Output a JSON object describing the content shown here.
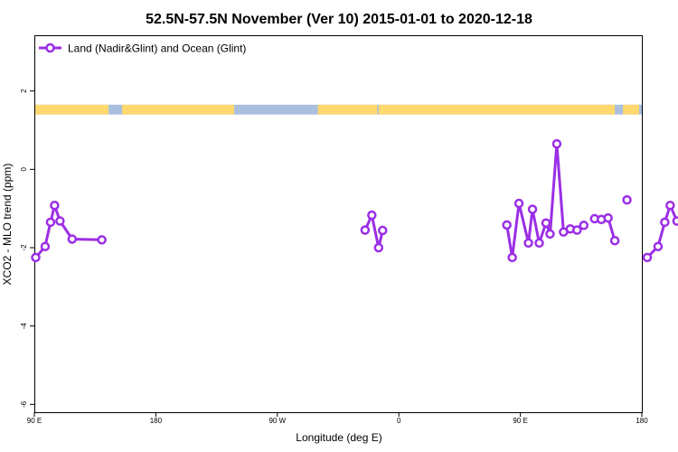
{
  "chart_data": {
    "type": "line",
    "title": "52.5N-57.5N November (Ver 10)   2015-01-01 to 2020-12-18",
    "xlabel": "Longitude (deg E)",
    "ylabel": "XCO2 - MLO trend (ppm)",
    "xlim": [
      90,
      450
    ],
    "ylim": [
      -6.2,
      3.4
    ],
    "x_ticks": [
      90,
      180,
      270,
      360,
      450,
      540
    ],
    "x_tick_labels": [
      "90 E",
      "180",
      "90 W",
      "0",
      "90 E",
      "180"
    ],
    "y_ticks": [
      -6,
      -4,
      -2,
      0,
      2
    ],
    "y_tick_labels": [
      "-6",
      "-4",
      "-2",
      "0",
      "2"
    ],
    "legend_position": "top-left",
    "land_ocean_band": {
      "y_range": [
        1.4,
        1.65
      ],
      "land_color": "#ffd86e",
      "ocean_color": "#a9bfe0",
      "land_segments": [
        [
          90,
          145
        ],
        [
          155,
          238
        ],
        [
          300,
          344
        ],
        [
          345,
          520
        ],
        [
          526,
          538
        ]
      ]
    },
    "series": [
      {
        "name": "Land (Nadir&Glint) and Ocean (Glint)",
        "color": "#9b2ee6",
        "points": [
          [
            1,
            -2.25
          ],
          [
            8,
            -1.97
          ],
          [
            12,
            -1.35
          ],
          [
            15,
            -0.92
          ],
          [
            19,
            -1.32
          ],
          [
            28,
            -1.78
          ],
          [
            50,
            -1.8
          ],
          null,
          [
            245,
            -1.55
          ],
          [
            250,
            -1.17
          ],
          [
            255,
            -2.0
          ],
          [
            258,
            -1.56
          ],
          null,
          [
            350,
            -1.42
          ],
          [
            354,
            -2.25
          ],
          [
            359,
            -0.87
          ],
          [
            366,
            -1.88
          ],
          [
            369,
            -1.02
          ],
          [
            374,
            -1.88
          ],
          [
            379,
            -1.37
          ],
          [
            382,
            -1.65
          ],
          [
            387,
            0.65
          ],
          [
            392,
            -1.6
          ],
          [
            397,
            -1.52
          ],
          [
            402,
            -1.55
          ],
          [
            407,
            -1.43
          ],
          null,
          [
            415,
            -1.26
          ],
          [
            420,
            -1.28
          ],
          [
            425,
            -1.24
          ],
          [
            430,
            -1.82
          ],
          null,
          [
            439,
            -0.78
          ],
          null,
          [
            454,
            -2.25
          ],
          [
            462,
            -1.97
          ],
          [
            467,
            -1.35
          ],
          [
            471,
            -0.92
          ],
          [
            476,
            -1.32
          ],
          null,
          [
            486,
            -1.78
          ],
          null,
          [
            508,
            -1.8
          ]
        ]
      }
    ]
  }
}
